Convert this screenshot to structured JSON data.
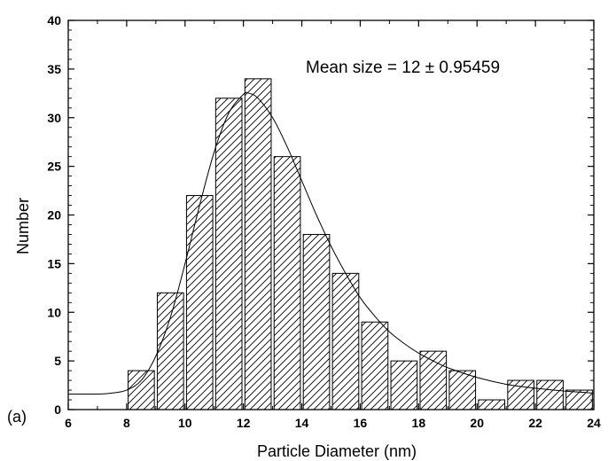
{
  "chart_data": {
    "type": "bar",
    "title": "",
    "xlabel": "Particle Diameter (nm)",
    "ylabel": "Number",
    "xlim": [
      6,
      24
    ],
    "ylim": [
      0,
      40
    ],
    "xticks": [
      "6",
      "8",
      "10",
      "12",
      "14",
      "16",
      "18",
      "20",
      "22",
      "24"
    ],
    "yticks": [
      "0",
      "5",
      "10",
      "15",
      "20",
      "25",
      "30",
      "35",
      "40"
    ],
    "bin_width": 0.9,
    "bar_fill": "diagonal-hatch",
    "bars": [
      {
        "x": 8.5,
        "value": 4
      },
      {
        "x": 9.5,
        "value": 12
      },
      {
        "x": 10.5,
        "value": 22
      },
      {
        "x": 11.5,
        "value": 32
      },
      {
        "x": 12.5,
        "value": 34
      },
      {
        "x": 13.5,
        "value": 26
      },
      {
        "x": 14.5,
        "value": 18
      },
      {
        "x": 15.5,
        "value": 14
      },
      {
        "x": 16.5,
        "value": 9
      },
      {
        "x": 17.5,
        "value": 5
      },
      {
        "x": 18.5,
        "value": 6
      },
      {
        "x": 19.5,
        "value": 4
      },
      {
        "x": 20.5,
        "value": 1
      },
      {
        "x": 21.5,
        "value": 3
      },
      {
        "x": 22.5,
        "value": 3
      },
      {
        "x": 23.5,
        "value": 2
      }
    ],
    "fit_curve": {
      "type": "lognormal",
      "peak_x": 12.1,
      "peak_y": 32.5,
      "points": [
        [
          6,
          1.6
        ],
        [
          7,
          1.6
        ],
        [
          7.5,
          1.7
        ],
        [
          8,
          2.0
        ],
        [
          8.5,
          3.0
        ],
        [
          9,
          5.5
        ],
        [
          9.5,
          9.5
        ],
        [
          10,
          15
        ],
        [
          10.5,
          21
        ],
        [
          11,
          26.5
        ],
        [
          11.5,
          30.5
        ],
        [
          12,
          32.4
        ],
        [
          12.2,
          32.5
        ],
        [
          12.5,
          32
        ],
        [
          13,
          30
        ],
        [
          13.5,
          27
        ],
        [
          14,
          23.5
        ],
        [
          14.5,
          20
        ],
        [
          15,
          16.8
        ],
        [
          15.5,
          14
        ],
        [
          16,
          11.5
        ],
        [
          16.5,
          9.6
        ],
        [
          17,
          8
        ],
        [
          17.5,
          6.8
        ],
        [
          18,
          5.8
        ],
        [
          18.5,
          5
        ],
        [
          19,
          4.3
        ],
        [
          20,
          3.3
        ],
        [
          21,
          2.6
        ],
        [
          22,
          2.2
        ],
        [
          23,
          1.9
        ],
        [
          24,
          1.7
        ]
      ]
    },
    "annotation": "Mean size = 12 ± 0.95459",
    "panel_label": "(a)",
    "grid": false,
    "legend": "none"
  }
}
